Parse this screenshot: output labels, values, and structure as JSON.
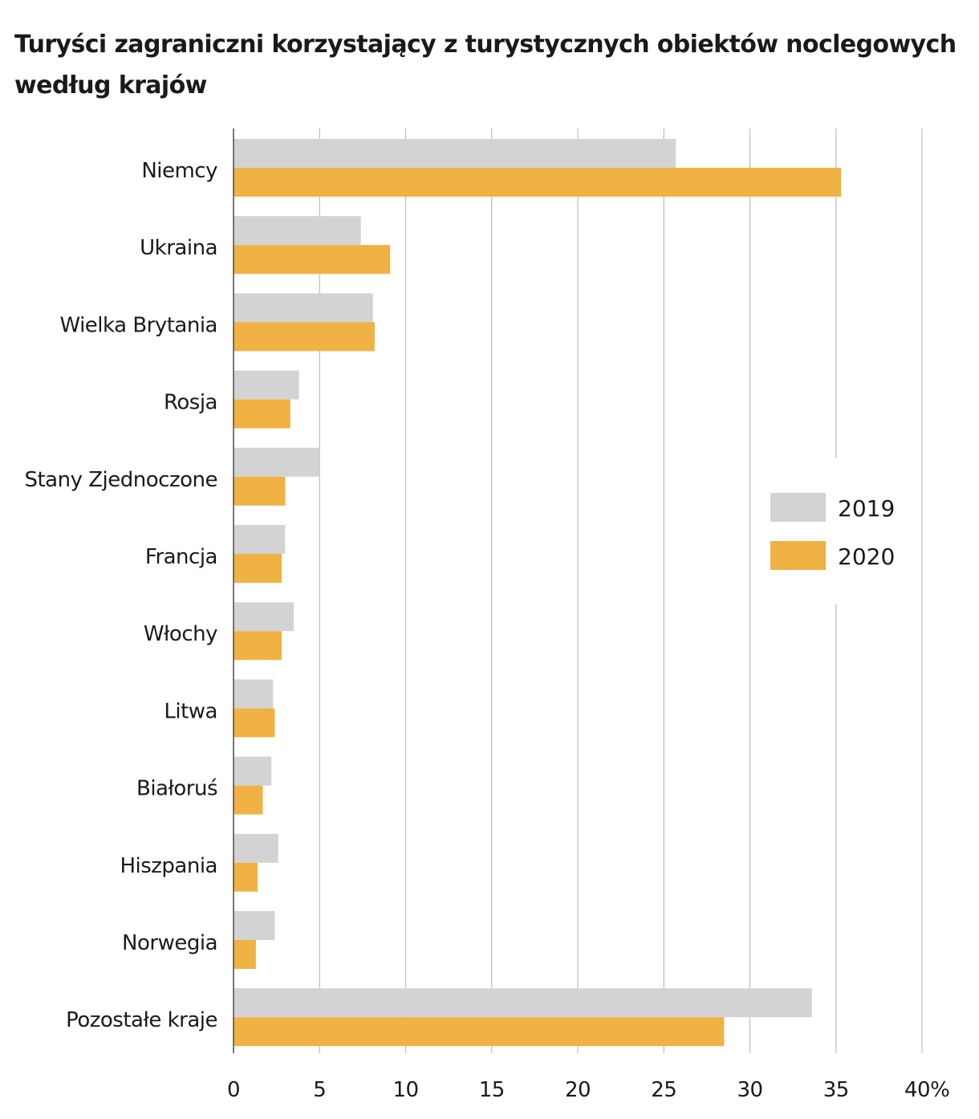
{
  "chart_data": {
    "type": "bar",
    "orientation": "horizontal",
    "title": "Turyści zagraniczni korzystający z turystycznych obiektów noclegowych według krajów",
    "categories": [
      "Niemcy",
      "Ukraina",
      "Wielka Brytania",
      "Rosja",
      "Stany Zjednoczone",
      "Francja",
      "Włochy",
      "Litwa",
      "Białoruś",
      "Hiszpania",
      "Norwegia",
      "Pozostałe kraje"
    ],
    "series": [
      {
        "name": "2019",
        "color": "#d3d3d3",
        "values": [
          25.7,
          7.4,
          8.1,
          3.8,
          5.0,
          3.0,
          3.5,
          2.3,
          2.2,
          2.6,
          2.4,
          33.6
        ]
      },
      {
        "name": "2020",
        "color": "#efb243",
        "values": [
          35.3,
          9.1,
          8.2,
          3.3,
          3.0,
          2.8,
          2.8,
          2.4,
          1.7,
          1.4,
          1.3,
          28.5
        ]
      }
    ],
    "xlim": [
      0,
      40
    ],
    "x_ticks": [
      "0",
      "5",
      "10",
      "15",
      "20",
      "25",
      "30",
      "35",
      "40%"
    ],
    "grid": true,
    "legend_position": "right"
  }
}
